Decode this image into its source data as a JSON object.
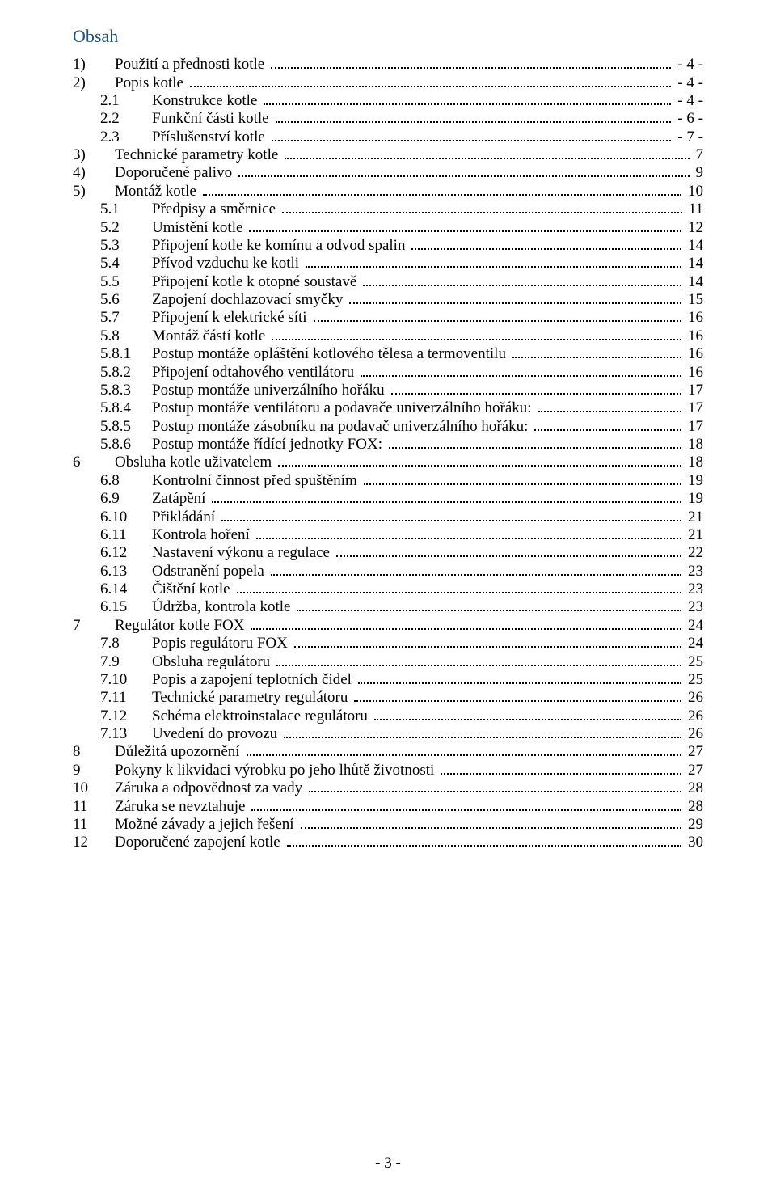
{
  "heading": "Obsah",
  "footer": "- 3 -",
  "colors": {
    "heading": "#1f4e79",
    "text": "#000000",
    "background": "#ffffff"
  },
  "typography": {
    "font_family": "Times New Roman",
    "body_fontsize_pt": 14,
    "heading_fontsize_pt": 16
  },
  "toc": [
    {
      "lvl": 0,
      "num": "1)",
      "title": "Použití a přednosti kotle",
      "page": "- 4 -"
    },
    {
      "lvl": 0,
      "num": "2)",
      "title": "Popis kotle",
      "page": "- 4 -"
    },
    {
      "lvl": 1,
      "num": "2.1",
      "title": "Konstrukce kotle",
      "page": "- 4 -"
    },
    {
      "lvl": 1,
      "num": "2.2",
      "title": "Funkční části kotle",
      "page": "- 6 -"
    },
    {
      "lvl": 1,
      "num": "2.3",
      "title": "Příslušenství kotle",
      "page": "- 7 -"
    },
    {
      "lvl": 0,
      "num": "3)",
      "title": "Technické parametry kotle",
      "page": "7"
    },
    {
      "lvl": 0,
      "num": "4)",
      "title": "Doporučené palivo",
      "page": "9"
    },
    {
      "lvl": 0,
      "num": "5)",
      "title": "Montáž kotle",
      "page": "10"
    },
    {
      "lvl": 1,
      "num": "5.1",
      "title": "Předpisy a směrnice",
      "page": "11"
    },
    {
      "lvl": 1,
      "num": "5.2",
      "title": "Umístění kotle",
      "page": "12"
    },
    {
      "lvl": 1,
      "num": "5.3",
      "title": "Připojení kotle ke komínu a odvod spalin",
      "page": "14"
    },
    {
      "lvl": 1,
      "num": "5.4",
      "title": "Přívod vzduchu ke kotli",
      "page": "14"
    },
    {
      "lvl": 1,
      "num": "5.5",
      "title": "Připojení kotle k otopné soustavě",
      "page": "14"
    },
    {
      "lvl": 1,
      "num": "5.6",
      "title": "Zapojení dochlazovací smyčky",
      "page": "15"
    },
    {
      "lvl": 1,
      "num": "5.7",
      "title": "Připojení k elektrické síti",
      "page": "16"
    },
    {
      "lvl": 1,
      "num": "5.8",
      "title": "Montáž částí kotle",
      "page": "16"
    },
    {
      "lvl": 2,
      "num": "5.8.1",
      "title": "Postup montáže opláštění kotlového tělesa a termoventilu",
      "page": "16"
    },
    {
      "lvl": 2,
      "num": "5.8.2",
      "title": "Připojení odtahového ventilátoru",
      "page": "16"
    },
    {
      "lvl": 2,
      "num": "5.8.3",
      "title": "Postup montáže univerzálního hořáku",
      "page": "17"
    },
    {
      "lvl": 2,
      "num": "5.8.4",
      "title": "Postup montáže ventilátoru a podavače univerzálního hořáku:",
      "page": "17"
    },
    {
      "lvl": 2,
      "num": "5.8.5",
      "title": "Postup montáže zásobníku na podavač univerzálního hořáku:",
      "page": "17"
    },
    {
      "lvl": 2,
      "num": "5.8.6",
      "title": "Postup montáže řídící jednotky FOX:",
      "page": "18"
    },
    {
      "lvl": 0,
      "num": "6",
      "title": "Obsluha kotle uživatelem",
      "page": "18"
    },
    {
      "lvl": 1,
      "num": "6.8",
      "title": "Kontrolní činnost před spuštěním",
      "page": "19"
    },
    {
      "lvl": 1,
      "num": "6.9",
      "title": "Zatápění",
      "page": "19"
    },
    {
      "lvl": 1,
      "num": "6.10",
      "title": "Přikládání",
      "page": "21"
    },
    {
      "lvl": 1,
      "num": "6.11",
      "title": "Kontrola hoření",
      "page": "21"
    },
    {
      "lvl": 1,
      "num": "6.12",
      "title": "Nastavení výkonu a regulace",
      "page": "22"
    },
    {
      "lvl": 1,
      "num": "6.13",
      "title": "Odstranění popela",
      "page": "23"
    },
    {
      "lvl": 1,
      "num": "6.14",
      "title": "Čištění kotle",
      "page": "23"
    },
    {
      "lvl": 1,
      "num": "6.15",
      "title": "Údržba, kontrola kotle",
      "page": "23"
    },
    {
      "lvl": 0,
      "num": "7",
      "title": "Regulátor kotle FOX",
      "page": "24"
    },
    {
      "lvl": 1,
      "num": "7.8",
      "title": "Popis regulátoru FOX",
      "page": "24"
    },
    {
      "lvl": 1,
      "num": "7.9",
      "title": "Obsluha regulátoru",
      "page": "25"
    },
    {
      "lvl": 1,
      "num": "7.10",
      "title": "Popis a zapojení teplotních čidel",
      "page": "25"
    },
    {
      "lvl": 1,
      "num": "7.11",
      "title": "Technické parametry regulátoru",
      "page": "26"
    },
    {
      "lvl": 1,
      "num": "7.12",
      "title": "Schéma elektroinstalace regulátoru",
      "page": "26"
    },
    {
      "lvl": 1,
      "num": "7.13",
      "title": "Uvedení do provozu",
      "page": "26"
    },
    {
      "lvl": 0,
      "num": "8",
      "title": "Důležitá upozornění",
      "page": "27"
    },
    {
      "lvl": 0,
      "num": "9",
      "title": "Pokyny k likvidaci výrobku po jeho lhůtě životnosti",
      "page": "27"
    },
    {
      "lvl": 0,
      "num": "10",
      "title": "Záruka a odpovědnost za vady",
      "page": "28"
    },
    {
      "lvl": 0,
      "num": "11",
      "title": "Záruka se nevztahuje",
      "page": "28"
    },
    {
      "lvl": 0,
      "num": "11",
      "title": "Možné závady a jejich řešení",
      "page": "29"
    },
    {
      "lvl": 0,
      "num": "12",
      "title": "Doporučené zapojení kotle",
      "page": "30"
    }
  ]
}
